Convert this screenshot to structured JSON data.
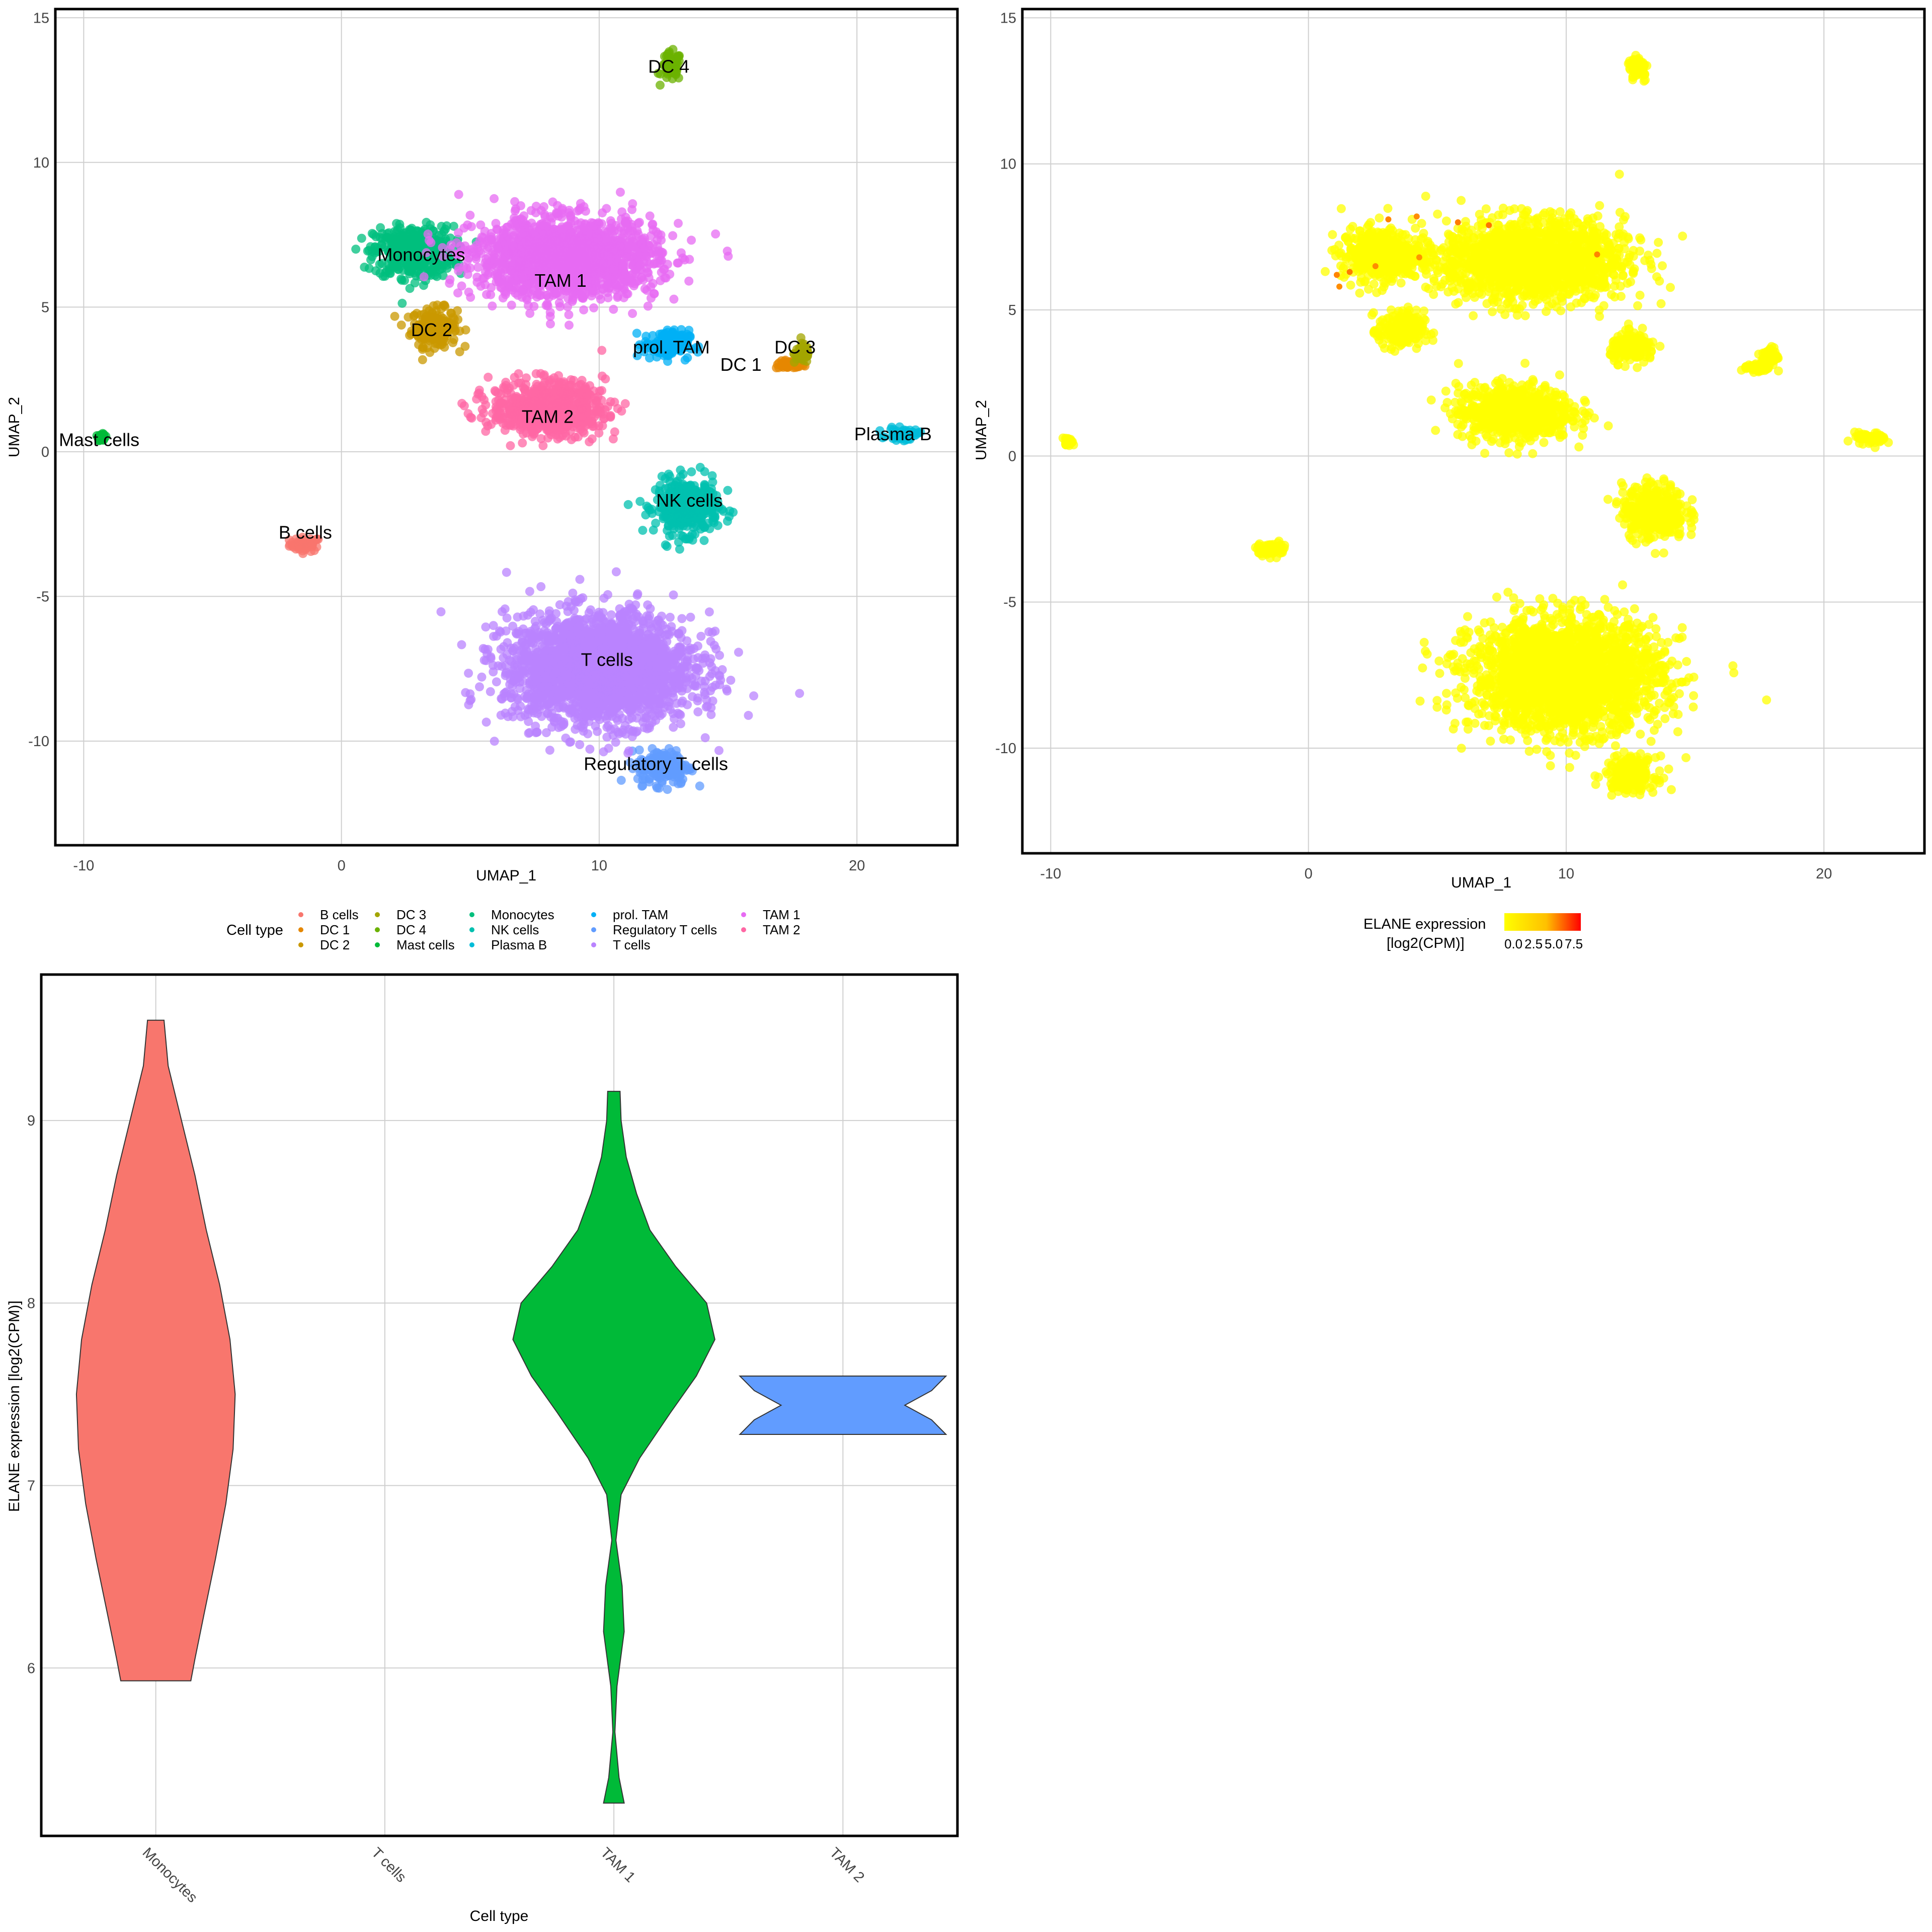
{
  "chart_data": [
    {
      "type": "scatter",
      "xlabel": "UMAP_1",
      "ylabel": "UMAP_2",
      "xlim": [
        -11.1,
        23.9
      ],
      "ylim": [
        -13.6,
        15.3
      ],
      "x_ticks": [
        -10,
        0,
        10,
        20
      ],
      "y_ticks": [
        -10,
        -5,
        0,
        5,
        10,
        15
      ],
      "x_tick_labels": [
        "-10",
        "0",
        "10",
        "20"
      ],
      "y_tick_labels": [
        "-10",
        "-5",
        "0",
        "5",
        "10",
        "15"
      ],
      "grid": true,
      "legend": {
        "title": "Cell type",
        "placement": "bottom",
        "entries": [
          "B cells",
          "DC 1",
          "DC 2",
          "DC 3",
          "DC 4",
          "Mast cells",
          "Monocytes",
          "NK cells",
          "Plasma B",
          "prol. TAM",
          "Regulatory T cells",
          "T cells",
          "TAM 1",
          "TAM 2"
        ]
      },
      "clusters": [
        {
          "name": "B cells",
          "color": "#F8766D",
          "x": -1.4,
          "y": -3.2,
          "sx": 0.55,
          "sy": 0.22
        },
        {
          "name": "DC 1",
          "color": "#E58700",
          "x": 17.4,
          "y": 3.0,
          "sx": 0.5,
          "sy": 0.12
        },
        {
          "name": "DC 2",
          "color": "#C99800",
          "x": 3.6,
          "y": 4.3,
          "sx": 0.8,
          "sy": 0.6
        },
        {
          "name": "DC 3",
          "color": "#A3A500",
          "x": 17.9,
          "y": 3.4,
          "sx": 0.3,
          "sy": 0.3
        },
        {
          "name": "DC 4",
          "color": "#6BB100",
          "x": 12.8,
          "y": 13.3,
          "sx": 0.35,
          "sy": 0.45
        },
        {
          "name": "Mast cells",
          "color": "#00BA38",
          "x": -9.3,
          "y": 0.5,
          "sx": 0.12,
          "sy": 0.1
        },
        {
          "name": "Monocytes",
          "color": "#00BF7D",
          "x": 2.8,
          "y": 6.9,
          "sx": 1.4,
          "sy": 0.8
        },
        {
          "name": "NK cells",
          "color": "#00C0AF",
          "x": 13.4,
          "y": -1.9,
          "sx": 1.1,
          "sy": 0.85
        },
        {
          "name": "Plasma B",
          "color": "#00BCD8",
          "x": 21.8,
          "y": 0.6,
          "sx": 0.55,
          "sy": 0.18
        },
        {
          "name": "prol. TAM",
          "color": "#00B0F6",
          "x": 12.6,
          "y": 3.7,
          "sx": 0.8,
          "sy": 0.45
        },
        {
          "name": "Regulatory T cells",
          "color": "#619CFF",
          "x": 12.5,
          "y": -10.9,
          "sx": 0.9,
          "sy": 0.55
        },
        {
          "name": "T cells",
          "color": "#B983FF",
          "x": 10.0,
          "y": -7.5,
          "sx": 3.3,
          "sy": 1.7
        },
        {
          "name": "TAM 1",
          "color": "#E76BF3",
          "x": 8.7,
          "y": 6.7,
          "sx": 3.2,
          "sy": 1.25
        },
        {
          "name": "TAM 2",
          "color": "#FF67A4",
          "x": 8.0,
          "y": 1.5,
          "sx": 2.0,
          "sy": 0.85
        }
      ],
      "labels": [
        {
          "text": "B cells",
          "x": -1.4,
          "y": -3.0
        },
        {
          "text": "DC 1",
          "x": 15.5,
          "y": 2.8
        },
        {
          "text": "DC 2",
          "x": 3.5,
          "y": 4.0
        },
        {
          "text": "DC 3",
          "x": 17.6,
          "y": 3.4
        },
        {
          "text": "DC 4",
          "x": 12.7,
          "y": 13.1
        },
        {
          "text": "Mast cells",
          "x": -9.4,
          "y": 0.2
        },
        {
          "text": "Monocytes",
          "x": 3.1,
          "y": 6.6
        },
        {
          "text": "NK cells",
          "x": 13.5,
          "y": -1.9
        },
        {
          "text": "Plasma B",
          "x": 21.4,
          "y": 0.4
        },
        {
          "text": "prol. TAM",
          "x": 12.8,
          "y": 3.4
        },
        {
          "text": "Regulatory T cells",
          "x": 12.2,
          "y": -11.0
        },
        {
          "text": "T cells",
          "x": 10.3,
          "y": -7.4
        },
        {
          "text": "TAM 1",
          "x": 8.5,
          "y": 5.7
        },
        {
          "text": "TAM 2",
          "x": 8.0,
          "y": 1.0
        }
      ]
    },
    {
      "type": "scatter",
      "xlabel": "UMAP_1",
      "ylabel": "UMAP_2",
      "xlim": [
        -11.1,
        23.9
      ],
      "ylim": [
        -13.6,
        15.3
      ],
      "x_ticks": [
        -10,
        0,
        10,
        20
      ],
      "y_ticks": [
        -10,
        -5,
        0,
        5,
        10,
        15
      ],
      "x_tick_labels": [
        "-10",
        "0",
        "10",
        "20"
      ],
      "y_tick_labels": [
        "-10",
        "-5",
        "0",
        "5",
        "10",
        "15"
      ],
      "grid": true,
      "point_color": "#FFFF00",
      "colorbar": {
        "title_line1": "ELANE expression",
        "title_line2": "[log2(CPM)]",
        "tick_labels": [
          "0.0",
          "2.5",
          "5.0",
          "7.5"
        ],
        "low_color": "#FFFF00",
        "high_color": "#FF0000",
        "placement": "bottom"
      },
      "highlight_points": [
        {
          "x": 1.1,
          "y": 6.2,
          "v": 7.0
        },
        {
          "x": 1.6,
          "y": 6.3,
          "v": 7.5
        },
        {
          "x": 2.6,
          "y": 6.5,
          "v": 6.5
        },
        {
          "x": 3.1,
          "y": 8.1,
          "v": 7.0
        },
        {
          "x": 4.2,
          "y": 8.2,
          "v": 6.5
        },
        {
          "x": 5.8,
          "y": 8.0,
          "v": 7.5
        },
        {
          "x": 7.0,
          "y": 7.9,
          "v": 8.0
        },
        {
          "x": 4.3,
          "y": 6.8,
          "v": 6.0
        },
        {
          "x": 1.2,
          "y": 5.8,
          "v": 6.5
        },
        {
          "x": 11.2,
          "y": 6.9,
          "v": 7.0
        }
      ]
    },
    {
      "type": "violin",
      "xlabel": "Cell type",
      "ylabel": "ELANE expression [log2(CPM)]",
      "categories": [
        "Monocytes",
        "T cells",
        "TAM 1",
        "TAM 2"
      ],
      "ylim": [
        5.08,
        9.8
      ],
      "y_ticks": [
        6,
        7,
        8,
        9
      ],
      "y_tick_labels": [
        "6",
        "7",
        "8",
        "9"
      ],
      "grid": true,
      "series": [
        {
          "category": "Monocytes",
          "color": "#F8766D",
          "min": 5.93,
          "max": 9.55,
          "profile": [
            [
              5.93,
              0.34
            ],
            [
              6.05,
              0.38
            ],
            [
              6.3,
              0.47
            ],
            [
              6.6,
              0.58
            ],
            [
              6.9,
              0.68
            ],
            [
              7.2,
              0.75
            ],
            [
              7.5,
              0.77
            ],
            [
              7.8,
              0.72
            ],
            [
              8.1,
              0.62
            ],
            [
              8.4,
              0.49
            ],
            [
              8.7,
              0.38
            ],
            [
              9.0,
              0.25
            ],
            [
              9.3,
              0.12
            ],
            [
              9.55,
              0.08
            ]
          ]
        },
        {
          "category": "T cells",
          "color": "#C77CFF",
          "min": null,
          "max": null,
          "profile": []
        },
        {
          "category": "TAM 1",
          "color": "#00BA38",
          "min": 5.26,
          "max": 9.16,
          "profile": [
            [
              5.26,
              0.1
            ],
            [
              5.4,
              0.05
            ],
            [
              5.65,
              0.01
            ],
            [
              5.9,
              0.03
            ],
            [
              6.2,
              0.1
            ],
            [
              6.45,
              0.08
            ],
            [
              6.7,
              0.02
            ],
            [
              6.95,
              0.07
            ],
            [
              7.15,
              0.25
            ],
            [
              7.4,
              0.55
            ],
            [
              7.6,
              0.8
            ],
            [
              7.8,
              0.98
            ],
            [
              8.0,
              0.9
            ],
            [
              8.2,
              0.6
            ],
            [
              8.4,
              0.35
            ],
            [
              8.6,
              0.22
            ],
            [
              8.8,
              0.12
            ],
            [
              9.0,
              0.07
            ],
            [
              9.16,
              0.06
            ]
          ]
        },
        {
          "category": "TAM 2",
          "color": "#619CFF",
          "min": 7.28,
          "max": 7.6,
          "profile": [
            [
              7.28,
              1.0
            ],
            [
              7.36,
              0.86
            ],
            [
              7.44,
              0.6
            ],
            [
              7.52,
              0.86
            ],
            [
              7.6,
              1.0
            ]
          ]
        }
      ]
    }
  ]
}
